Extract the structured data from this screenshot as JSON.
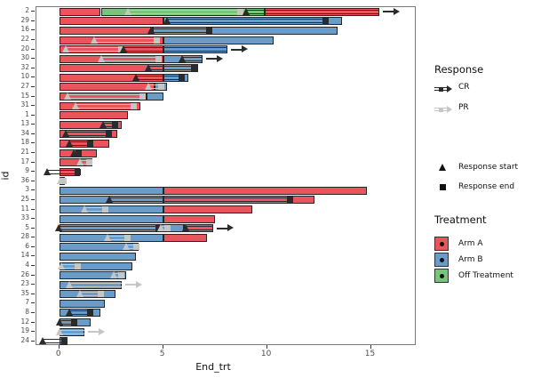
{
  "figure": {
    "background": "#ffffff"
  },
  "axes": {
    "x_title": "End_trt",
    "y_title": "id"
  },
  "legend": {
    "response_title": "Response",
    "response_items": [
      {
        "label": "CR",
        "key": "CR"
      },
      {
        "label": "PR",
        "key": "PR"
      }
    ],
    "shape_items": [
      {
        "label": "Response start",
        "shape": "triangle"
      },
      {
        "label": "Response end",
        "shape": "square"
      }
    ],
    "treatment_title": "Treatment",
    "treatment_items": [
      {
        "label": "Arm A",
        "arm": "A"
      },
      {
        "label": "Arm B",
        "arm": "B"
      },
      {
        "label": "Off Treatment",
        "arm": "O"
      }
    ]
  },
  "chart_data": {
    "type": "bar",
    "subtype": "horizontal_stacked_swimmer",
    "title": "",
    "xlabel": "End_trt",
    "ylabel": "id",
    "xticks": [
      0,
      5,
      10,
      15
    ],
    "xlim": [
      -1.1,
      17.2
    ],
    "grid": false,
    "legend_position": "right",
    "arm_colors": {
      "A": "#ea545c",
      "B": "#699cc8",
      "O": "#79c47b"
    },
    "arm_labels": {
      "A": "Arm A",
      "B": "Arm B",
      "O": "Off Treatment"
    },
    "response_colors": {
      "CR": "#2b2b2b",
      "PR": "#c6c6c6"
    },
    "rows": [
      {
        "id": "2",
        "segs": [
          [
            0,
            2.0,
            "A"
          ],
          [
            2.0,
            9.9,
            "O"
          ],
          [
            9.9,
            15.4,
            "A"
          ]
        ],
        "resp": [
          {
            "t": "PR",
            "x1": 3.3,
            "x2": 8.7,
            "tri": true,
            "e": "sq"
          },
          {
            "t": "CR",
            "x1": 9.0,
            "x2": 15.4,
            "tri": true,
            "e": "arrow"
          }
        ]
      },
      {
        "id": "29",
        "segs": [
          [
            0,
            5.0,
            "A"
          ],
          [
            5.0,
            13.6,
            "B"
          ]
        ],
        "resp": [
          {
            "t": "CR",
            "x1": 5.2,
            "x2": 12.8,
            "tri": true,
            "e": "sq"
          }
        ]
      },
      {
        "id": "16",
        "segs": [
          [
            0,
            4.5,
            "A"
          ],
          [
            4.5,
            13.4,
            "B"
          ]
        ],
        "resp": [
          {
            "t": "CR",
            "x1": 4.4,
            "x2": 7.2,
            "tri": true,
            "e": "sq"
          }
        ]
      },
      {
        "id": "22",
        "segs": [
          [
            0,
            5.0,
            "A"
          ],
          [
            5.0,
            10.3,
            "B"
          ]
        ],
        "resp": [
          {
            "t": "PR",
            "x1": 1.7,
            "x2": 4.7,
            "tri": true,
            "e": "sq"
          }
        ]
      },
      {
        "id": "20",
        "segs": [
          [
            0,
            5.0,
            "A"
          ],
          [
            5.0,
            8.1,
            "B"
          ]
        ],
        "resp": [
          {
            "t": "PR",
            "x1": 0.3,
            "x2": 3.0,
            "tri": true,
            "e": "sq"
          },
          {
            "t": "CR",
            "x1": 3.1,
            "x2": 8.1,
            "tri": true,
            "e": "arrow"
          }
        ]
      },
      {
        "id": "30",
        "segs": [
          [
            0,
            5.0,
            "A"
          ],
          [
            5.0,
            6.9,
            "B"
          ]
        ],
        "resp": [
          {
            "t": "PR",
            "x1": 2.0,
            "x2": 4.8,
            "tri": true,
            "e": "sq"
          },
          {
            "t": "CR",
            "x1": 5.9,
            "x2": 6.9,
            "tri": true,
            "e": "arrow"
          }
        ]
      },
      {
        "id": "32",
        "segs": [
          [
            0,
            5.0,
            "A"
          ],
          [
            5.0,
            6.7,
            "B"
          ]
        ],
        "resp": [
          {
            "t": "CR",
            "x1": 4.3,
            "x2": 6.5,
            "tri": true,
            "e": "sq"
          }
        ]
      },
      {
        "id": "10",
        "segs": [
          [
            0,
            5.0,
            "A"
          ],
          [
            5.0,
            6.2,
            "B"
          ]
        ],
        "resp": [
          {
            "t": "CR",
            "x1": 3.7,
            "x2": 5.9,
            "tri": true,
            "e": "sq"
          }
        ]
      },
      {
        "id": "27",
        "segs": [
          [
            0,
            4.6,
            "A"
          ],
          [
            4.6,
            5.2,
            "B"
          ]
        ],
        "resp": [
          {
            "t": "PR",
            "x1": 4.3,
            "x2": 4.9,
            "tri": true,
            "e": "sq"
          }
        ]
      },
      {
        "id": "15",
        "segs": [
          [
            0,
            4.2,
            "A"
          ],
          [
            4.2,
            5.0,
            "B"
          ]
        ],
        "resp": [
          {
            "t": "PR",
            "x1": 0.4,
            "x2": 4.0,
            "tri": true,
            "e": "sq"
          }
        ]
      },
      {
        "id": "31",
        "segs": [
          [
            0,
            3.9,
            "A"
          ]
        ],
        "resp": [
          {
            "t": "PR",
            "x1": 0.8,
            "x2": 3.6,
            "tri": true,
            "e": "sq"
          }
        ]
      },
      {
        "id": "1",
        "segs": [
          [
            0,
            3.3,
            "A"
          ]
        ],
        "resp": []
      },
      {
        "id": "13",
        "segs": [
          [
            0,
            3.0,
            "A"
          ]
        ],
        "resp": [
          {
            "t": "CR",
            "x1": 2.1,
            "x2": 2.7,
            "tri": true,
            "e": "sq"
          }
        ]
      },
      {
        "id": "34",
        "segs": [
          [
            0,
            2.8,
            "A"
          ]
        ],
        "resp": [
          {
            "t": "CR",
            "x1": 0.3,
            "x2": 2.4,
            "tri": true,
            "e": "sq"
          }
        ]
      },
      {
        "id": "18",
        "segs": [
          [
            0,
            2.4,
            "A"
          ]
        ],
        "resp": [
          {
            "t": "CR",
            "x1": 0.5,
            "x2": 1.5,
            "tri": true,
            "e": "sq"
          }
        ]
      },
      {
        "id": "21",
        "segs": [
          [
            0,
            1.8,
            "A"
          ]
        ],
        "resp": [
          {
            "t": "CR",
            "x1": 0.7,
            "x2": 0.95,
            "tri": true,
            "e": "sq"
          }
        ]
      },
      {
        "id": "17",
        "segs": [
          [
            0,
            1.6,
            "A"
          ]
        ],
        "resp": [
          {
            "t": "PR",
            "x1": 1.0,
            "x2": 1.45,
            "tri": true,
            "e": "sq"
          }
        ]
      },
      {
        "id": "9",
        "segs": [
          [
            0,
            1.0,
            "A"
          ]
        ],
        "resp": [
          {
            "t": "CR",
            "x1": -0.6,
            "x2": 0.9,
            "tri": true,
            "e": "sq"
          }
        ]
      },
      {
        "id": "36",
        "segs": [
          [
            0,
            0.25,
            "A"
          ]
        ],
        "resp": [
          {
            "t": "PR",
            "x1": 0.05,
            "x2": 0.2,
            "tri": true,
            "e": "sq"
          }
        ]
      },
      {
        "id": "3",
        "segs": [
          [
            0,
            5.0,
            "B"
          ],
          [
            5.0,
            14.8,
            "A"
          ]
        ],
        "resp": []
      },
      {
        "id": "25",
        "segs": [
          [
            0,
            5.0,
            "B"
          ],
          [
            5.0,
            12.3,
            "A"
          ]
        ],
        "resp": [
          {
            "t": "CR",
            "x1": 2.4,
            "x2": 11.1,
            "tri": true,
            "e": "sq"
          }
        ]
      },
      {
        "id": "11",
        "segs": [
          [
            0,
            5.0,
            "B"
          ],
          [
            5.0,
            9.3,
            "A"
          ]
        ],
        "resp": [
          {
            "t": "PR",
            "x1": 1.2,
            "x2": 2.2,
            "tri": true,
            "e": "sq"
          }
        ]
      },
      {
        "id": "33",
        "segs": [
          [
            0,
            5.0,
            "B"
          ],
          [
            5.0,
            7.5,
            "A"
          ]
        ],
        "resp": []
      },
      {
        "id": "5",
        "segs": [
          [
            0,
            6.0,
            "B"
          ],
          [
            6.0,
            7.4,
            "A"
          ]
        ],
        "resp": [
          {
            "t": "CR",
            "x1": -0.05,
            "x2": 4.8,
            "tri": true,
            "e": "sq"
          },
          {
            "t": "PR",
            "x1": 4.9,
            "x2": 5.2,
            "tri": true,
            "e": "sq"
          },
          {
            "t": "CR",
            "x1": 6.1,
            "x2": 7.4,
            "tri": true,
            "e": "arrow"
          }
        ]
      },
      {
        "id": "28",
        "segs": [
          [
            0,
            5.0,
            "B"
          ],
          [
            5.0,
            7.1,
            "A"
          ]
        ],
        "resp": [
          {
            "t": "PR",
            "x1": 2.3,
            "x2": 3.3,
            "tri": true,
            "e": "sq"
          }
        ]
      },
      {
        "id": "6",
        "segs": [
          [
            0,
            3.8,
            "B"
          ]
        ],
        "resp": [
          {
            "t": "PR",
            "x1": 3.2,
            "x2": 3.7,
            "tri": true,
            "e": "sq"
          }
        ]
      },
      {
        "id": "14",
        "segs": [
          [
            0,
            3.7,
            "B"
          ]
        ],
        "resp": []
      },
      {
        "id": "4",
        "segs": [
          [
            0,
            3.5,
            "B"
          ]
        ],
        "resp": [
          {
            "t": "PR",
            "x1": 0.1,
            "x2": 0.9,
            "tri": true,
            "e": "sq"
          }
        ]
      },
      {
        "id": "26",
        "segs": [
          [
            0,
            3.2,
            "B"
          ]
        ],
        "resp": [
          {
            "t": "PR",
            "x1": 2.6,
            "x2": 3.0,
            "tri": true,
            "e": "sq"
          }
        ]
      },
      {
        "id": "23",
        "segs": [
          [
            0,
            3.0,
            "B"
          ]
        ],
        "resp": [
          {
            "t": "PR",
            "x1": 0.5,
            "x2": 3.0,
            "tri": true,
            "e": "arrow"
          }
        ]
      },
      {
        "id": "35",
        "segs": [
          [
            0,
            2.7,
            "B"
          ]
        ],
        "resp": [
          {
            "t": "PR",
            "x1": 1.0,
            "x2": 2.0,
            "tri": true,
            "e": "sq"
          }
        ]
      },
      {
        "id": "7",
        "segs": [
          [
            0,
            2.2,
            "B"
          ]
        ],
        "resp": []
      },
      {
        "id": "8",
        "segs": [
          [
            0,
            2.0,
            "B"
          ]
        ],
        "resp": [
          {
            "t": "CR",
            "x1": 0.5,
            "x2": 1.5,
            "tri": true,
            "e": "sq"
          }
        ]
      },
      {
        "id": "12",
        "segs": [
          [
            0,
            1.5,
            "B"
          ]
        ],
        "resp": [
          {
            "t": "CR",
            "x1": 0.0,
            "x2": 0.7,
            "tri": true,
            "e": "sq"
          }
        ]
      },
      {
        "id": "19",
        "segs": [
          [
            0,
            1.2,
            "B"
          ]
        ],
        "resp": [
          {
            "t": "PR",
            "x1": 0.0,
            "x2": 1.2,
            "tri": true,
            "e": "arrow"
          }
        ]
      },
      {
        "id": "24",
        "segs": [
          [
            0,
            0.4,
            "B"
          ]
        ],
        "resp": [
          {
            "t": "CR",
            "x1": -0.8,
            "x2": 0.25,
            "tri": true,
            "e": "sq"
          }
        ]
      }
    ]
  }
}
